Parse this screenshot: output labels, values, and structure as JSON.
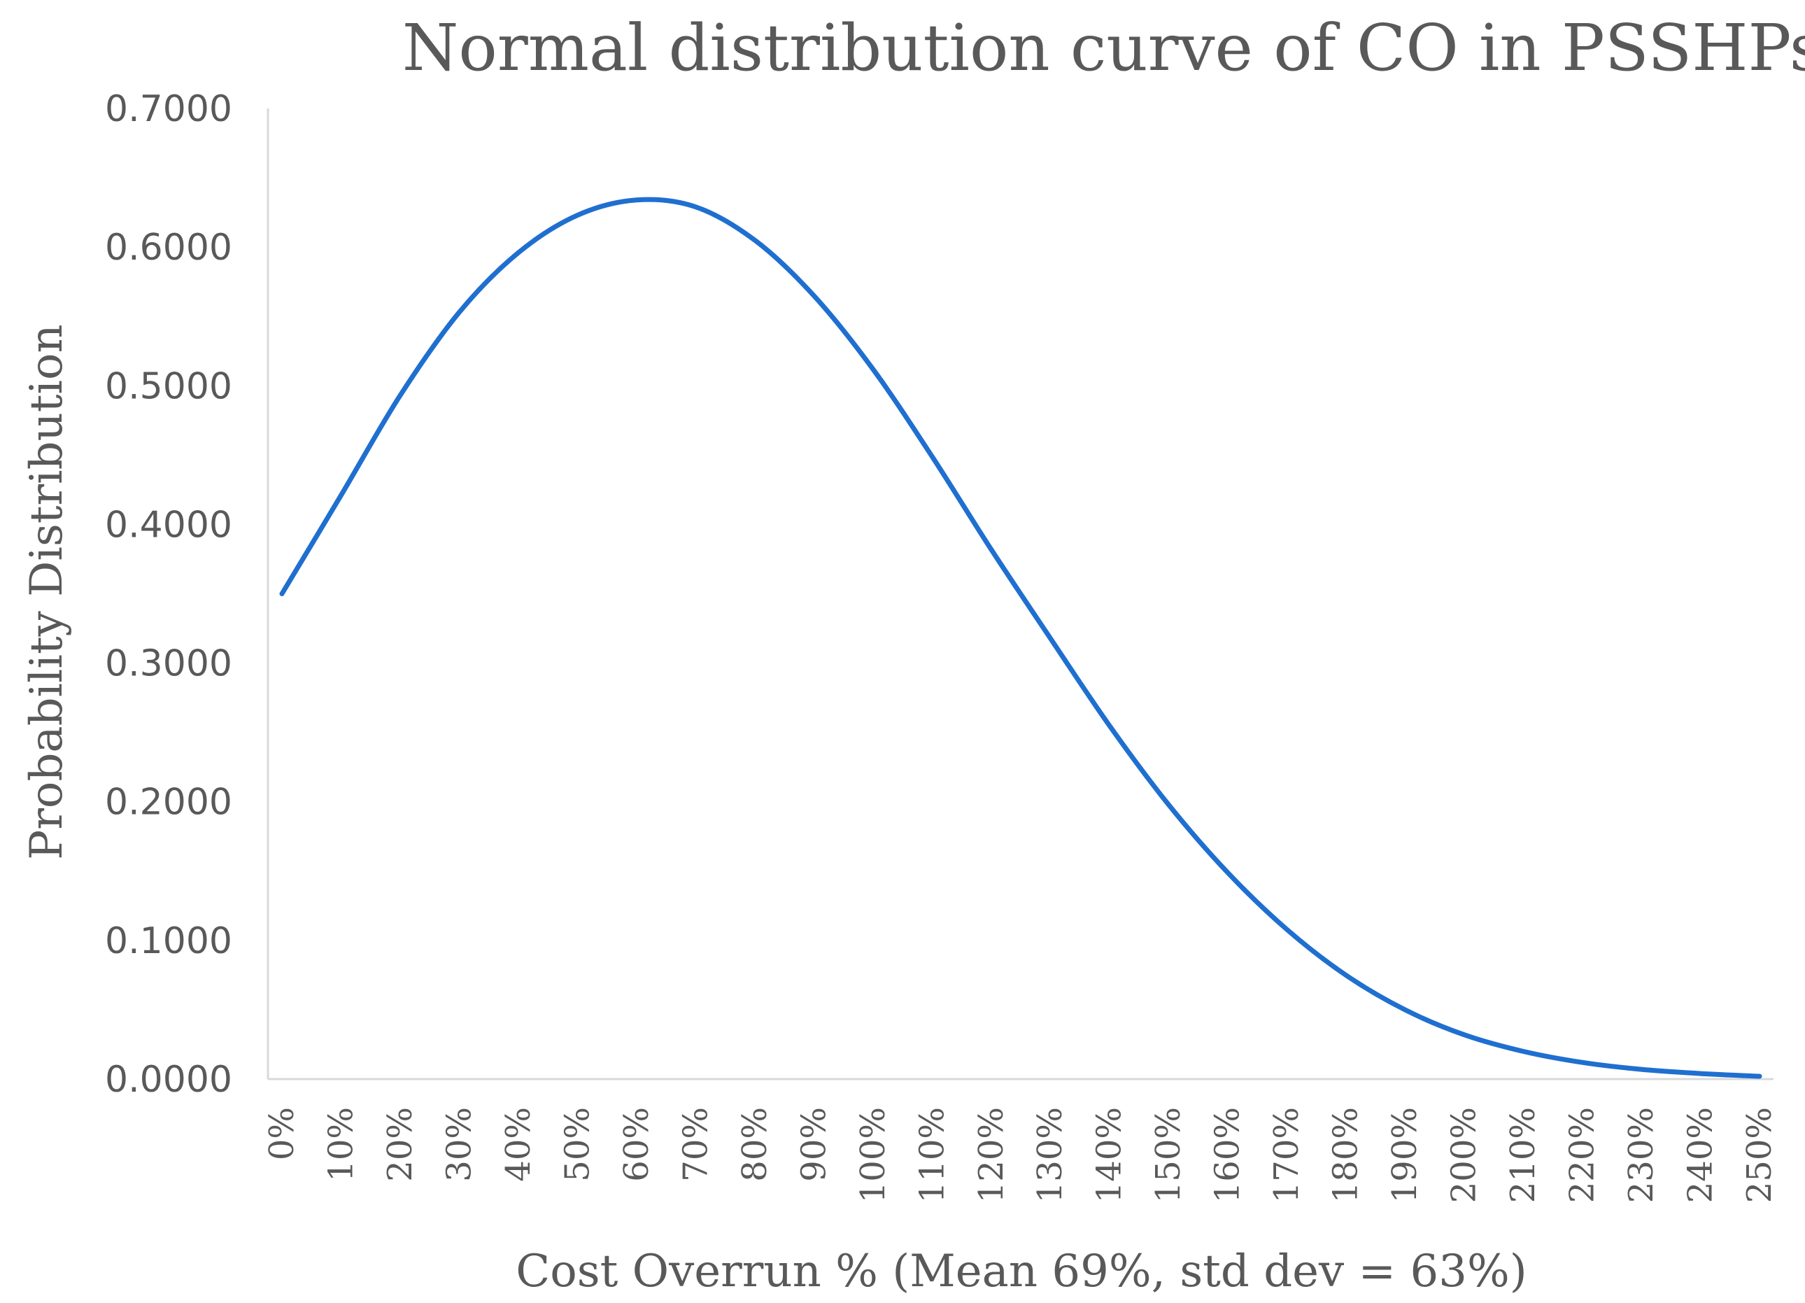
{
  "chart_data": {
    "type": "line",
    "title": "Normal distribution curve of CO in PSSHPs",
    "xlabel": "Cost Overrun % (Mean 69%, std dev = 63%)",
    "ylabel": "Probability Distribution",
    "ylim": [
      0,
      0.7
    ],
    "yticks": [
      "0.0000",
      "0.1000",
      "0.2000",
      "0.3000",
      "0.4000",
      "0.5000",
      "0.6000",
      "0.7000"
    ],
    "categories": [
      "0%",
      "10%",
      "20%",
      "30%",
      "40%",
      "50%",
      "60%",
      "70%",
      "80%",
      "90%",
      "100%",
      "110%",
      "120%",
      "130%",
      "140%",
      "150%",
      "160%",
      "170%",
      "180%",
      "190%",
      "200%",
      "210%",
      "220%",
      "230%",
      "240%",
      "250%"
    ],
    "grid": false,
    "legend": "none",
    "series": [
      {
        "values": [
          0.35,
          0.421,
          0.493,
          0.553,
          0.596,
          0.623,
          0.634,
          0.629,
          0.605,
          0.565,
          0.512,
          0.449,
          0.382,
          0.318,
          0.255,
          0.198,
          0.149,
          0.108,
          0.075,
          0.05,
          0.032,
          0.02,
          0.012,
          0.007,
          0.004,
          0.002
        ],
        "color": "#1F6FD0"
      }
    ]
  }
}
